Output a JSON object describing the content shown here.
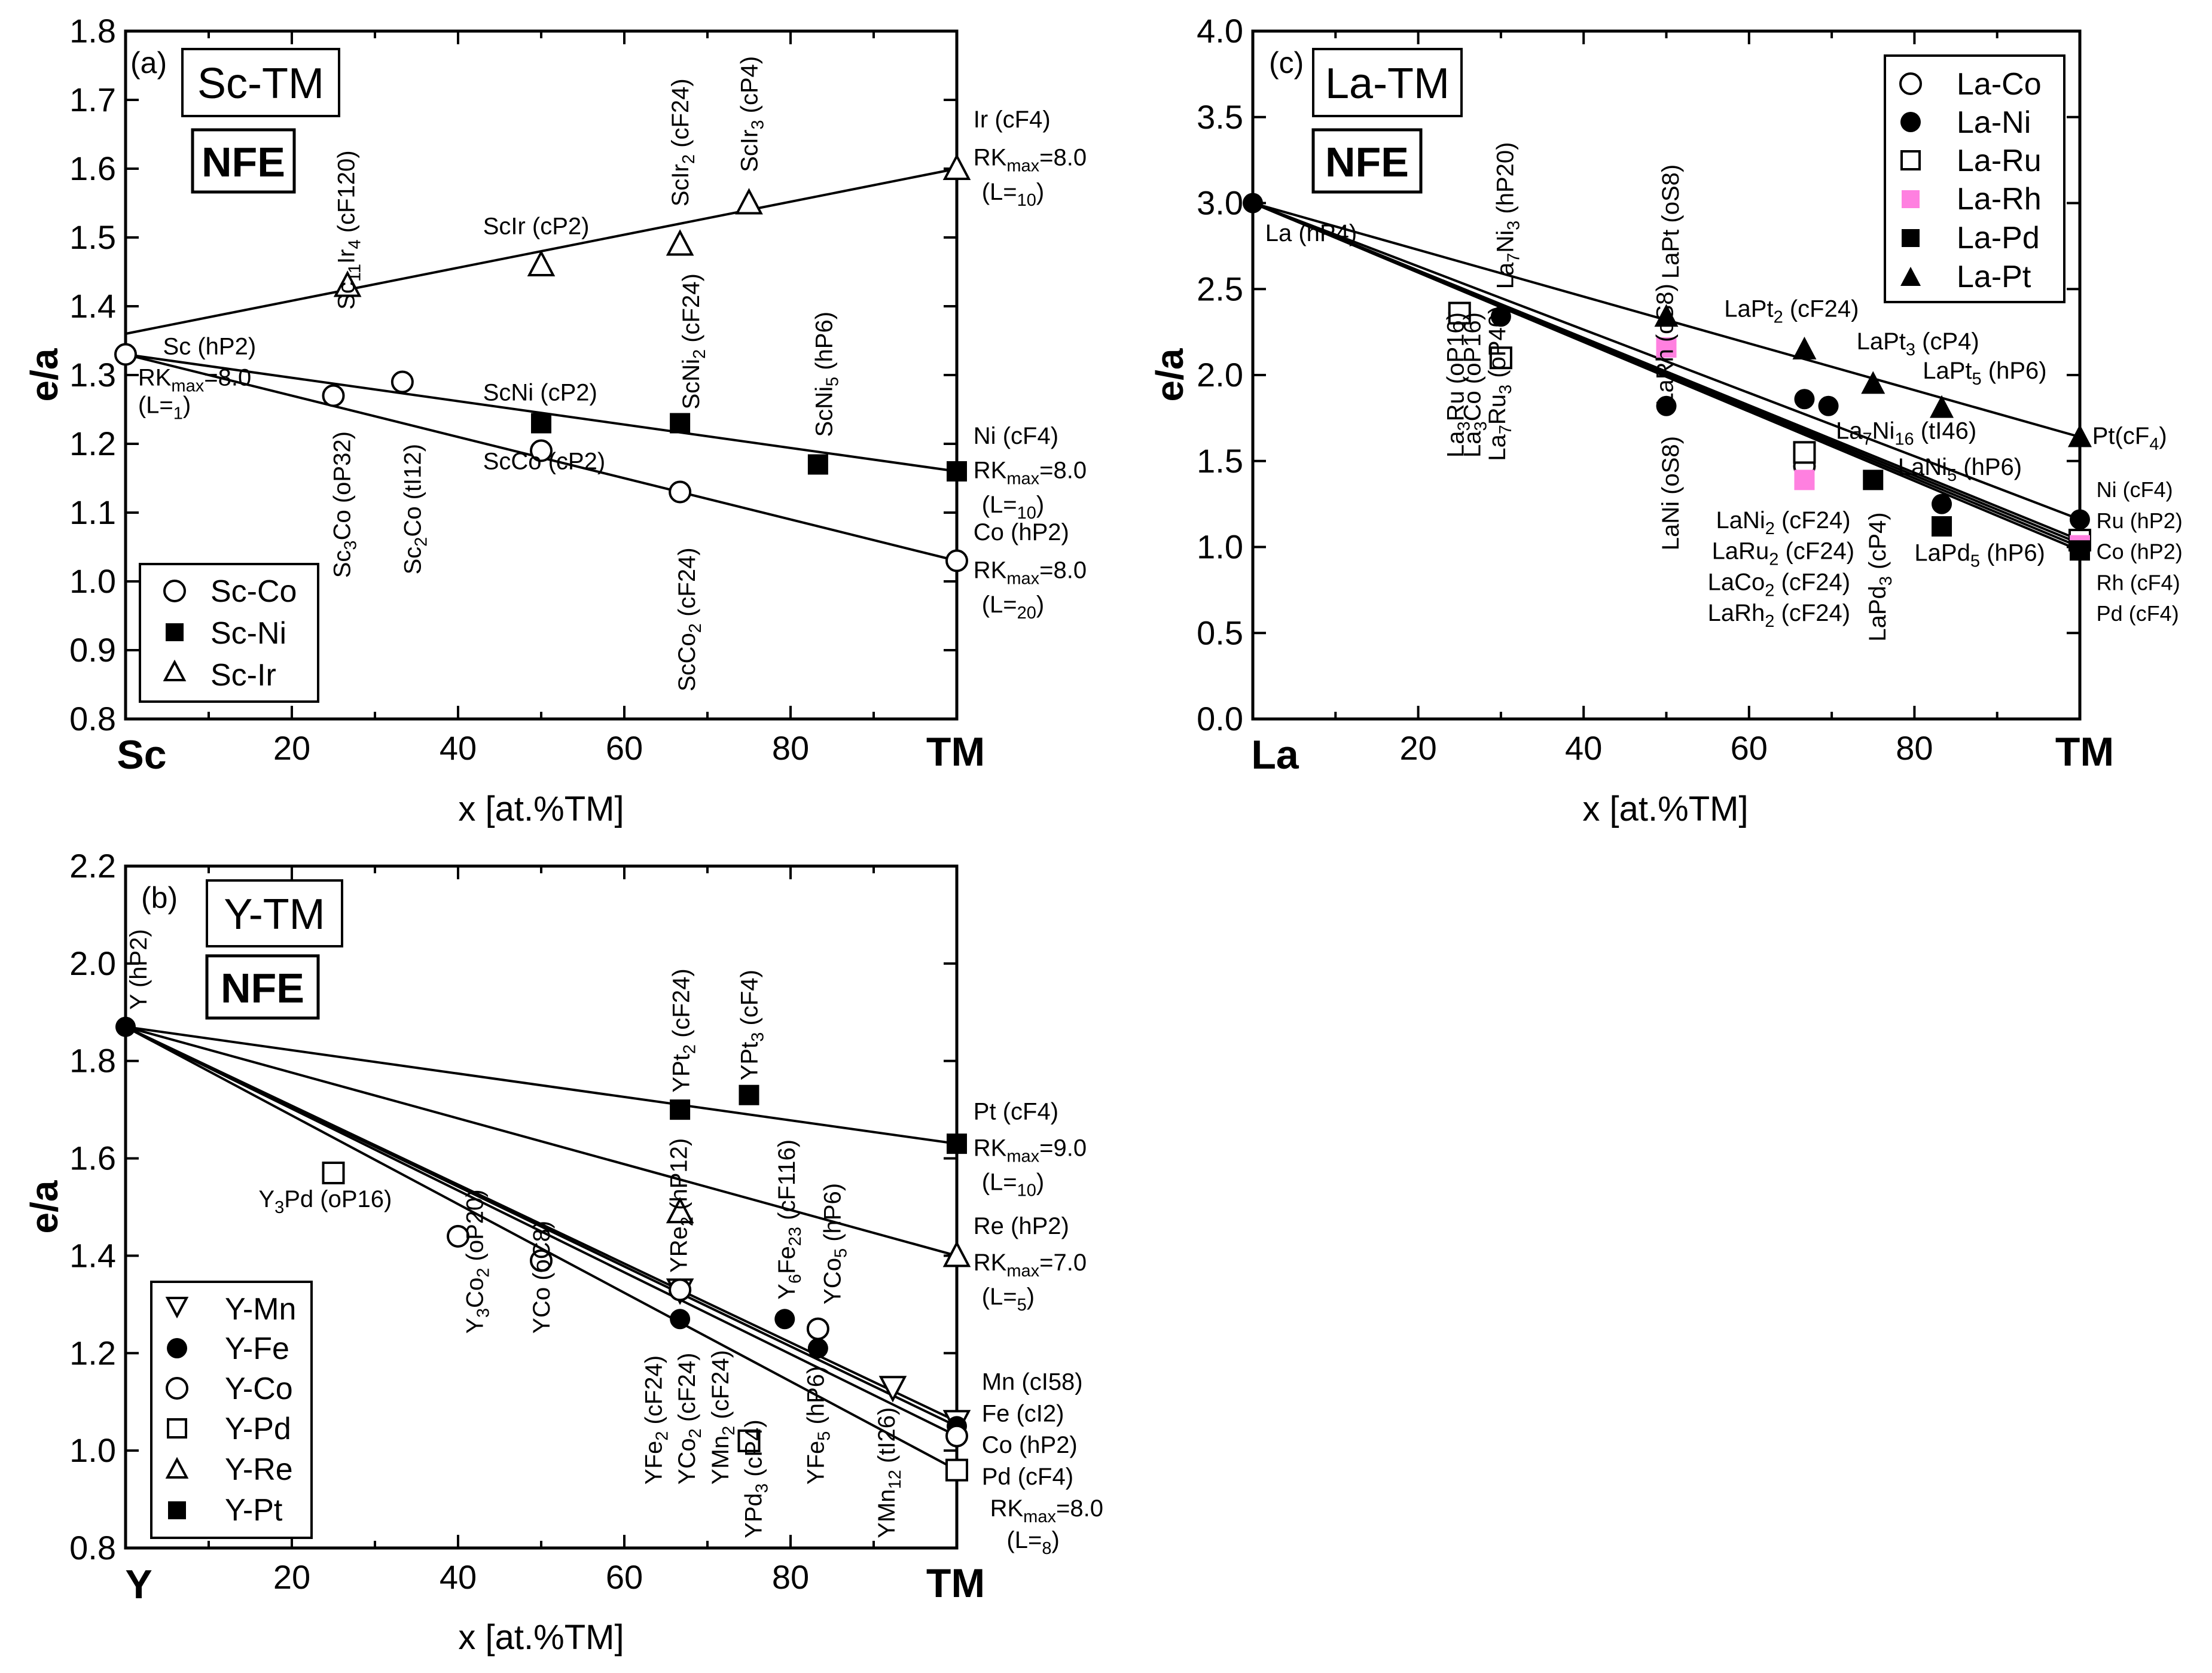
{
  "chart_data": [
    {
      "panel": "(a)",
      "title": "Sc-TM",
      "subtitle": "NFE",
      "type": "scatter",
      "xlabel": "x [at.%TM]",
      "ylabel": "e/a",
      "xlim": [
        0,
        100
      ],
      "ylim": [
        0.8,
        1.8
      ],
      "x_ticks": [
        20,
        40,
        60,
        80
      ],
      "y_ticks": [
        "0.8",
        "0.9",
        "1.0",
        "1.1",
        "1.2",
        "1.3",
        "1.4",
        "1.5",
        "1.6",
        "1.7",
        "1.8"
      ],
      "x_end_labels": [
        "Sc",
        "TM"
      ],
      "legend_position": "lower-left",
      "series": [
        {
          "name": "Sc-Co",
          "marker": "circle-open",
          "points": [
            [
              0,
              1.33
            ],
            [
              25,
              1.27
            ],
            [
              33.3,
              1.29
            ],
            [
              50,
              1.19
            ],
            [
              66.7,
              1.13
            ],
            [
              100,
              1.03
            ]
          ]
        },
        {
          "name": "Sc-Ni",
          "marker": "square-filled",
          "points": [
            [
              50,
              1.23
            ],
            [
              66.7,
              1.23
            ],
            [
              83.3,
              1.17
            ],
            [
              100,
              1.16
            ]
          ]
        },
        {
          "name": "Sc-Ir",
          "marker": "triangle-up-open",
          "points": [
            [
              26.7,
              1.43
            ],
            [
              50,
              1.46
            ],
            [
              66.7,
              1.49
            ],
            [
              75,
              1.55
            ],
            [
              100,
              1.6
            ]
          ]
        }
      ],
      "fit_lines": [
        {
          "name": "Sc-Ir",
          "from": [
            0,
            1.36
          ],
          "to": [
            100,
            1.6
          ]
        },
        {
          "name": "Sc-Ni",
          "from": [
            0,
            1.33
          ],
          "to": [
            100,
            1.16
          ]
        },
        {
          "name": "Sc-Co",
          "from": [
            0,
            1.33
          ],
          "to": [
            100,
            1.03
          ]
        }
      ],
      "annotations": [
        {
          "text": "Sc (hP2)",
          "x": 4.5,
          "y": 1.33
        },
        {
          "text": "RKmax=8.0",
          "x": 1.5,
          "y": 1.285
        },
        {
          "text": "(L=1)",
          "x": 1.5,
          "y": 1.245
        },
        {
          "text": "ScIr (cP2)",
          "x": 43,
          "y": 1.505
        },
        {
          "text": "ScNi (cP2)",
          "x": 43,
          "y": 1.263
        },
        {
          "text": "ScCo (cP2)",
          "x": 43,
          "y": 1.163
        },
        {
          "text": "Ir (cF4)",
          "x": 102,
          "y": 1.66
        },
        {
          "text": "RKmax=8.0",
          "x": 102,
          "y": 1.605
        },
        {
          "text": "(L=10)",
          "x": 103,
          "y": 1.555
        },
        {
          "text": "Ni (cF4)",
          "x": 102,
          "y": 1.2
        },
        {
          "text": "RKmax=8.0",
          "x": 102,
          "y": 1.15
        },
        {
          "text": "(L=10)",
          "x": 103,
          "y": 1.1
        },
        {
          "text": "Co (hP2)",
          "x": 102,
          "y": 1.06
        },
        {
          "text": "RKmax=8.0",
          "x": 102,
          "y": 1.005
        },
        {
          "text": "(L=20)",
          "x": 103,
          "y": 0.955
        }
      ],
      "vertical_annotations": [
        "Sc11Ir4 (cF120)",
        "ScIr2 (cF24)",
        "ScIr3 (cP4)",
        "ScNi2 (cF24)",
        "ScNi5 (hP6)",
        "Sc3Co (oP32)",
        "Sc2Co (tI12)",
        "ScCo2 (cF24)"
      ]
    },
    {
      "panel": "(b)",
      "title": "Y-TM",
      "subtitle": "NFE",
      "type": "scatter",
      "xlabel": "x [at.%TM]",
      "ylabel": "e/a",
      "xlim": [
        0,
        100
      ],
      "ylim": [
        0.8,
        2.2
      ],
      "x_ticks": [
        20,
        40,
        60,
        80
      ],
      "y_ticks": [
        "0.8",
        "1.0",
        "1.2",
        "1.4",
        "1.6",
        "1.8",
        "2.0",
        "2.2"
      ],
      "x_end_labels": [
        "Y",
        "TM"
      ],
      "legend_position": "lower-left",
      "series": [
        {
          "name": "Y-Mn",
          "marker": "triangle-down-open",
          "points": [
            [
              66.7,
              1.33
            ],
            [
              92.3,
              1.13
            ],
            [
              100,
              1.06
            ]
          ]
        },
        {
          "name": "Y-Fe",
          "marker": "circle-filled",
          "points": [
            [
              0,
              1.87
            ],
            [
              66.7,
              1.27
            ],
            [
              79.3,
              1.27
            ],
            [
              83.3,
              1.21
            ],
            [
              100,
              1.05
            ]
          ]
        },
        {
          "name": "Y-Co",
          "marker": "circle-open",
          "points": [
            [
              40,
              1.44
            ],
            [
              50,
              1.39
            ],
            [
              66.7,
              1.33
            ],
            [
              83.3,
              1.25
            ],
            [
              100,
              1.03
            ]
          ]
        },
        {
          "name": "Y-Pd",
          "marker": "square-open",
          "points": [
            [
              25,
              1.57
            ],
            [
              75,
              1.02
            ],
            [
              100,
              0.96
            ]
          ]
        },
        {
          "name": "Y-Re",
          "marker": "triangle-up-open",
          "points": [
            [
              66.7,
              1.49
            ],
            [
              100,
              1.4
            ]
          ]
        },
        {
          "name": "Y-Pt",
          "marker": "square-filled",
          "points": [
            [
              66.7,
              1.7
            ],
            [
              75,
              1.73
            ],
            [
              100,
              1.63
            ]
          ]
        }
      ],
      "fit_lines": [
        {
          "name": "Y-Pt",
          "from": [
            0,
            1.87
          ],
          "to": [
            100,
            1.63
          ]
        },
        {
          "name": "Y-Re",
          "from": [
            0,
            1.87
          ],
          "to": [
            100,
            1.4
          ]
        },
        {
          "name": "Y-Mn",
          "from": [
            0,
            1.87
          ],
          "to": [
            100,
            1.06
          ]
        },
        {
          "name": "Y-Fe",
          "from": [
            0,
            1.87
          ],
          "to": [
            100,
            1.05
          ]
        },
        {
          "name": "Y-Co",
          "from": [
            0,
            1.87
          ],
          "to": [
            100,
            1.03
          ]
        },
        {
          "name": "Y-Pd",
          "from": [
            0,
            1.87
          ],
          "to": [
            100,
            0.96
          ]
        }
      ],
      "annotations": [
        {
          "text": "Y3Pd (oP16)",
          "x": 16,
          "y": 1.5
        },
        {
          "text": "Pt (cF4)",
          "x": 102,
          "y": 1.68
        },
        {
          "text": "RKmax=9.0",
          "x": 102,
          "y": 1.605
        },
        {
          "text": "(L=10)",
          "x": 103,
          "y": 1.535
        },
        {
          "text": "Re (hP2)",
          "x": 102,
          "y": 1.445
        },
        {
          "text": "RKmax=7.0",
          "x": 102,
          "y": 1.37
        },
        {
          "text": "(L=5)",
          "x": 103,
          "y": 1.3
        },
        {
          "text": "Mn (cI58)",
          "x": 103,
          "y": 1.125
        },
        {
          "text": "Fe (cI2)",
          "x": 103,
          "y": 1.06
        },
        {
          "text": "Co (hP2)",
          "x": 103,
          "y": 0.995
        },
        {
          "text": "Pd (cF4)",
          "x": 103,
          "y": 0.93
        },
        {
          "text": "RKmax=8.0",
          "x": 104,
          "y": 0.865
        },
        {
          "text": "(L=8)",
          "x": 106,
          "y": 0.8
        }
      ],
      "vertical_annotations": [
        "Y (hP2)",
        "YPt2 (cF24)",
        "YPt3 (cF4)",
        "YRe2 (hP12)",
        "Y6Fe23 (cF116)",
        "YCo5 (hP6)",
        "Y3Co2 (oP20)",
        "YCo (oC8)",
        "YFe2 (cF24)",
        "YCo2 (cF24)",
        "YMn2 (cF24)",
        "YPd3 (cP4)",
        "YFe5 (hP6)",
        "YMn12 (tI26)"
      ]
    },
    {
      "panel": "(c)",
      "title": "La-TM",
      "subtitle": "NFE",
      "type": "scatter",
      "xlabel": "x [at.%TM]",
      "ylabel": "e/a",
      "xlim": [
        0,
        100
      ],
      "ylim": [
        0.0,
        4.0
      ],
      "x_ticks": [
        20,
        40,
        60,
        80
      ],
      "y_ticks": [
        "0.0",
        "0.5",
        "1.0",
        "1.5",
        "2.0",
        "2.5",
        "3.0",
        "3.5",
        "4.0"
      ],
      "x_end_labels": [
        "La",
        "TM"
      ],
      "legend_position": "top-right",
      "series": [
        {
          "name": "La-Co",
          "marker": "circle-open",
          "points": [
            [
              25,
              2.36
            ],
            [
              66.7,
              1.47
            ],
            [
              100,
              1.02
            ]
          ]
        },
        {
          "name": "La-Ni",
          "marker": "circle-filled",
          "points": [
            [
              0,
              3.0
            ],
            [
              30,
              2.34
            ],
            [
              50,
              1.82
            ],
            [
              66.7,
              1.86
            ],
            [
              69.6,
              1.82
            ],
            [
              83.3,
              1.25
            ],
            [
              100,
              1.16
            ]
          ]
        },
        {
          "name": "La-Ru",
          "marker": "square-open",
          "points": [
            [
              25,
              2.36
            ],
            [
              30,
              2.1
            ],
            [
              66.7,
              1.55
            ],
            [
              100,
              1.04
            ]
          ]
        },
        {
          "name": "La-Rh",
          "marker": "square-filled-pink",
          "points": [
            [
              50,
              2.16
            ],
            [
              66.7,
              1.39
            ],
            [
              100,
              1.01
            ]
          ]
        },
        {
          "name": "La-Pd",
          "marker": "square-filled",
          "points": [
            [
              75,
              1.39
            ],
            [
              83.3,
              1.12
            ],
            [
              100,
              0.98
            ]
          ]
        },
        {
          "name": "La-Pt",
          "marker": "triangle-up-filled",
          "points": [
            [
              50,
              2.34
            ],
            [
              66.7,
              2.15
            ],
            [
              75,
              1.95
            ],
            [
              83.3,
              1.81
            ],
            [
              100,
              1.64
            ]
          ]
        }
      ],
      "fit_lines": [
        {
          "name": "La-Pt",
          "from": [
            0,
            3.0
          ],
          "to": [
            100,
            1.64
          ]
        },
        {
          "name": "La-Ni",
          "from": [
            0,
            3.0
          ],
          "to": [
            100,
            1.16
          ]
        },
        {
          "name": "La-Ru",
          "from": [
            0,
            3.0
          ],
          "to": [
            100,
            1.04
          ]
        },
        {
          "name": "La-Co",
          "from": [
            0,
            3.0
          ],
          "to": [
            100,
            1.02
          ]
        },
        {
          "name": "La-Rh",
          "from": [
            0,
            3.0
          ],
          "to": [
            100,
            1.0
          ]
        },
        {
          "name": "La-Pd",
          "from": [
            0,
            3.0
          ],
          "to": [
            100,
            0.98
          ]
        }
      ],
      "annotations": [
        {
          "text": "La (hP4)",
          "x": 1.5,
          "y": 2.78
        },
        {
          "text": "LaPt2 (cF24)",
          "x": 57,
          "y": 2.34
        },
        {
          "text": "LaPt3 (cP4)",
          "x": 73,
          "y": 2.15
        },
        {
          "text": "LaPt5 (hP6)",
          "x": 81,
          "y": 1.98
        },
        {
          "text": "Pt(cF4)",
          "x": 101.5,
          "y": 1.6
        },
        {
          "text": "La7Ni16 (tI46)",
          "x": 70.5,
          "y": 1.63
        },
        {
          "text": "LaNi5 (hP6)",
          "x": 78,
          "y": 1.42
        },
        {
          "text": "LaNi2 (cF24)",
          "x": 56,
          "y": 1.11
        },
        {
          "text": "LaRu2 (cF24)",
          "x": 55.5,
          "y": 0.93
        },
        {
          "text": "LaCo2 (cF24)",
          "x": 55,
          "y": 0.75
        },
        {
          "text": "LaRh2 (cF24)",
          "x": 55,
          "y": 0.57
        },
        {
          "text": "LaPd5 (hP6)",
          "x": 80,
          "y": 0.92
        },
        {
          "text": "Ni (cF4)",
          "x": 102,
          "y": 1.29
        },
        {
          "text": "Ru (hP2)",
          "x": 102,
          "y": 1.11
        },
        {
          "text": "Co (hP2)",
          "x": 102,
          "y": 0.93
        },
        {
          "text": "Rh (cF4)",
          "x": 102,
          "y": 0.75
        },
        {
          "text": "Pd (cF4)",
          "x": 102,
          "y": 0.57
        }
      ],
      "vertical_annotations": [
        "La7Ni3 (hP20)",
        "LaPt (oS8)",
        "LaRh (oS8)",
        "La3Ru (oP16)",
        "La3Co (oP16)",
        "La7Ru3 (oP40)",
        "LaNi (oS8)",
        "LaPd3 (cP4)"
      ]
    }
  ]
}
